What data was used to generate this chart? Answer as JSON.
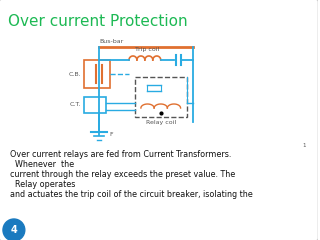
{
  "title": "Over current Protection",
  "title_color": "#1db954",
  "title_fontsize": 11,
  "background_color": "#ffffff",
  "text_lines": [
    "Over current relays are fed from Current Transformers.",
    "  Whenever  the",
    "current through the relay exceeds the preset value. The",
    "  Relay operates",
    "and actuates the trip coil of the circuit breaker, isolating the"
  ],
  "text_fontsize": 5.8,
  "slide_number": "4",
  "slide_number_color": "#1a7abf",
  "line_color": "#29abe2",
  "coil_color": "#e07030",
  "bus_color": "#e07030",
  "cb_color": "#e07030",
  "ct_color": "#29abe2",
  "gray": "#555555"
}
